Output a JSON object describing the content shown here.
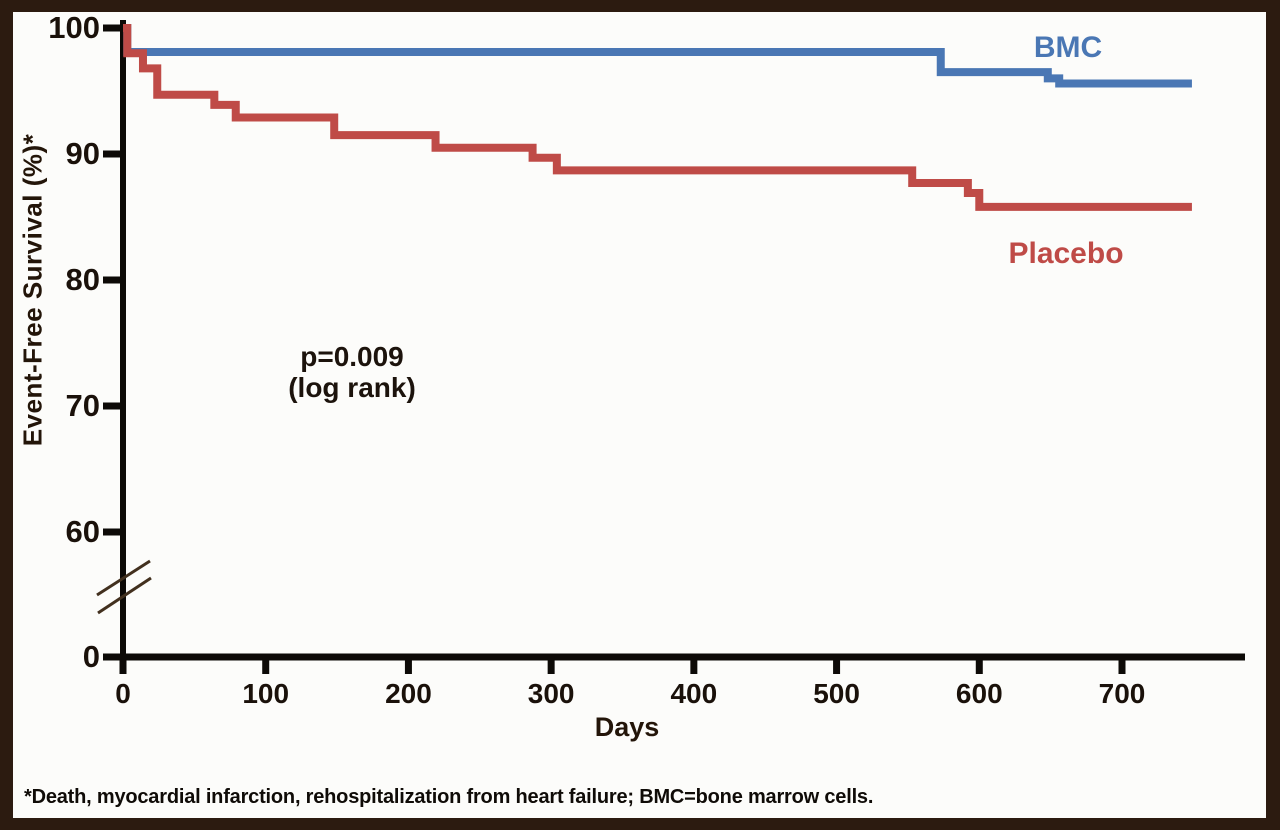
{
  "figure": {
    "frame_color": "#2c1b10",
    "plot_background": "#fcfcfa",
    "axis_color": "#0d0a07"
  },
  "labels": {
    "y_axis_title": "Event-Free Survival (%)*",
    "x_axis_title": "Days",
    "pvalue_line1": "p=0.009",
    "pvalue_line2": "(log rank)",
    "footnote": "*Death, myocardial infarction, rehospitalization from heart failure; BMC=bone marrow cells."
  },
  "chart_data": {
    "type": "line",
    "subtype": "kaplan-meier-step",
    "title": "",
    "xlabel": "Days",
    "ylabel": "Event-Free Survival (%)*",
    "annotation": "p=0.009 (log rank)",
    "x_ticks": [
      0,
      100,
      200,
      300,
      400,
      500,
      600,
      700
    ],
    "y_ticks": [
      100,
      90,
      80,
      70,
      60,
      0
    ],
    "y_axis_break_between": [
      0,
      60
    ],
    "xlim": [
      0,
      785
    ],
    "ylim_display": [
      60,
      100
    ],
    "grid": false,
    "legend_position": "labels-on-chart",
    "series": [
      {
        "name": "BMC",
        "color": "#4a77b4",
        "end_x": 749,
        "points": [
          [
            0,
            100
          ],
          [
            3,
            98.1
          ],
          [
            573,
            96.5
          ],
          [
            648,
            96.0
          ],
          [
            656,
            95.6
          ]
        ]
      },
      {
        "name": "Placebo",
        "color": "#bf4b47",
        "end_x": 749,
        "points": [
          [
            0,
            100
          ],
          [
            3,
            98.0
          ],
          [
            14,
            96.8
          ],
          [
            24,
            94.7
          ],
          [
            64,
            93.9
          ],
          [
            79,
            92.9
          ],
          [
            148,
            91.5
          ],
          [
            219,
            90.5
          ],
          [
            287,
            89.7
          ],
          [
            304,
            88.7
          ],
          [
            553,
            87.7
          ],
          [
            592,
            86.9
          ],
          [
            600,
            85.8
          ]
        ]
      }
    ]
  }
}
